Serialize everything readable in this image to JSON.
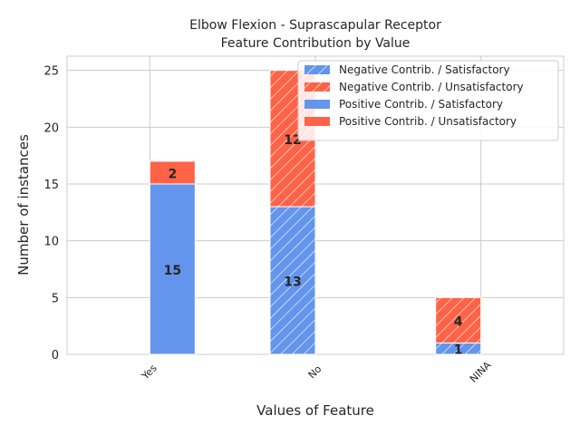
{
  "chart_data": {
    "type": "bar",
    "stacked": true,
    "title": "Elbow Flexion - Suprascapular Receptor",
    "subtitle": "Feature Contribution by Value",
    "xlabel": "Values of Feature",
    "ylabel": "Number of instances",
    "categories": [
      "Yes",
      "No",
      "NINA"
    ],
    "ylim": [
      0,
      26.25
    ],
    "yticks": [
      0,
      5,
      10,
      15,
      20,
      25
    ],
    "grid": true,
    "legend_position": "top-right",
    "groups": [
      {
        "name": "Negative Contrib.",
        "hatched": true,
        "series": [
          {
            "name": "Negative Contrib. / Satisfactory",
            "color": "#6495ED",
            "values": [
              0,
              13,
              1
            ]
          },
          {
            "name": "Negative Contrib. / Unsatisfactory",
            "color": "#FF6347",
            "values": [
              0,
              12,
              4
            ]
          }
        ]
      },
      {
        "name": "Positive Contrib.",
        "hatched": false,
        "series": [
          {
            "name": "Positive Contrib. / Satisfactory",
            "color": "#6495ED",
            "values": [
              15,
              0,
              0
            ]
          },
          {
            "name": "Positive Contrib. / Unsatisfactory",
            "color": "#FF6347",
            "values": [
              2,
              0,
              0
            ]
          }
        ]
      }
    ]
  }
}
